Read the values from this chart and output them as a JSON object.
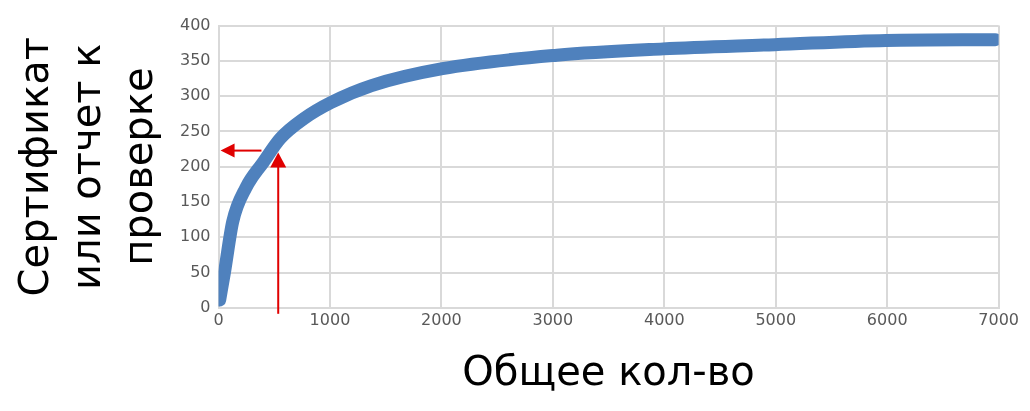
{
  "chart_data": {
    "type": "line",
    "xlabel": "Общее кол-во",
    "ylabel": "Сертификат\nили отчет к\nпроверке",
    "x": [
      10,
      54,
      127,
      245,
      400,
      554,
      764,
      1009,
      1373,
      2009,
      3036,
      3990,
      4990,
      5990,
      6970
    ],
    "series": [
      {
        "color": "#4f81bd",
        "values": [
          11,
          51,
          122,
          170,
          206,
          240,
          268,
          291,
          315,
          339,
          358,
          367,
          373,
          379,
          380
        ]
      }
    ],
    "xlim": [
      0,
      7000
    ],
    "xticks": [
      0,
      1000,
      2000,
      3000,
      4000,
      5000,
      6000,
      7000
    ],
    "ylim": [
      0,
      400
    ],
    "yticks": [
      0,
      50,
      100,
      150,
      200,
      250,
      300,
      350,
      400
    ],
    "grid": true,
    "legend": false,
    "marker": "none",
    "line_style": "solid"
  }
}
